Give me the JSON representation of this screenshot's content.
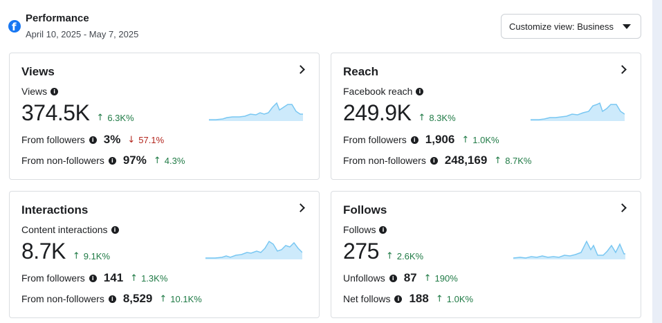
{
  "header": {
    "title": "Performance",
    "date_range": "April 10, 2025 - May 7, 2025",
    "customize_label": "Customize view: Business"
  },
  "cards": [
    {
      "title": "Views",
      "metric_label": "Views",
      "value": "374.5K",
      "delta": "6.3K%",
      "delta_dir": "up",
      "rows": [
        {
          "label": "From followers",
          "value": "3%",
          "delta": "57.1%",
          "delta_dir": "down"
        },
        {
          "label": "From non-followers",
          "value": "97%",
          "delta": "4.3%",
          "delta_dir": "up"
        }
      ]
    },
    {
      "title": "Reach",
      "metric_label": "Facebook reach",
      "value": "249.9K",
      "delta": "8.3K%",
      "delta_dir": "up",
      "rows": [
        {
          "label": "From followers",
          "value": "1,906",
          "delta": "1.0K%",
          "delta_dir": "up"
        },
        {
          "label": "From non-followers",
          "value": "248,169",
          "delta": "8.7K%",
          "delta_dir": "up"
        }
      ]
    },
    {
      "title": "Interactions",
      "metric_label": "Content interactions",
      "value": "8.7K",
      "delta": "9.1K%",
      "delta_dir": "up",
      "rows": [
        {
          "label": "From followers",
          "value": "141",
          "delta": "1.3K%",
          "delta_dir": "up"
        },
        {
          "label": "From non-followers",
          "value": "8,529",
          "delta": "10.1K%",
          "delta_dir": "up"
        }
      ]
    },
    {
      "title": "Follows",
      "metric_label": "Follows",
      "value": "275",
      "delta": "2.6K%",
      "delta_dir": "up",
      "rows": [
        {
          "label": "Unfollows",
          "value": "87",
          "delta": "190%",
          "delta_dir": "up"
        },
        {
          "label": "Net follows",
          "value": "188",
          "delta": "1.0K%",
          "delta_dir": "up"
        }
      ]
    }
  ],
  "colors": {
    "brand": "#1877f2",
    "positive": "#1f7a45",
    "negative": "#b3261e",
    "sparkline_stroke": "#79c7f2",
    "sparkline_fill": "#cdeafb"
  },
  "icons": {
    "logo": "facebook-logo-icon",
    "info": "info-icon",
    "chevron": "chevron-right-icon",
    "dropdown": "caret-down-icon",
    "trend_up": "arrow-up-icon",
    "trend_down": "arrow-down-icon"
  }
}
